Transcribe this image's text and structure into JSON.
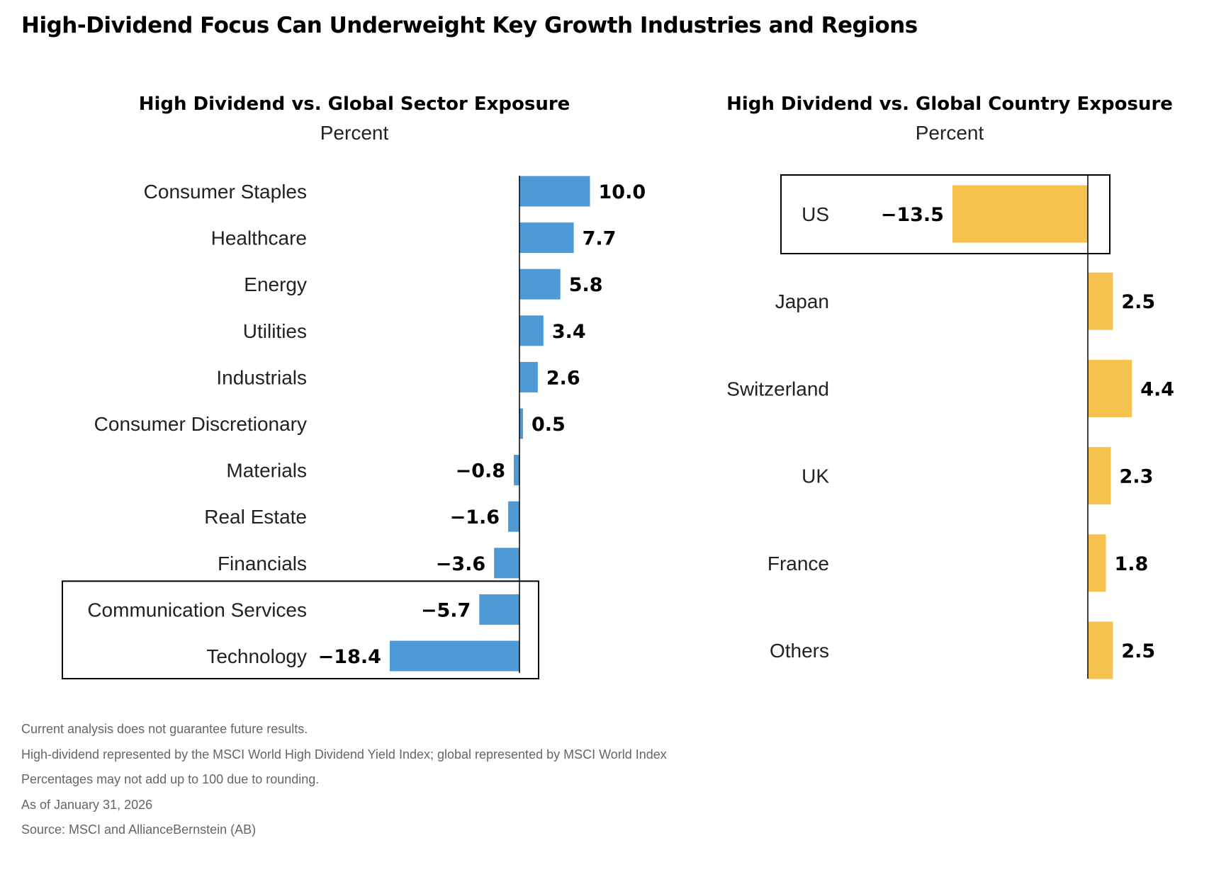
{
  "page_title": "High-Dividend Focus Can Underweight Key Growth Industries and Regions",
  "colors": {
    "sector_bar": "#4d9ad6",
    "country_bar": "#f4c24d"
  },
  "chart_data": [
    {
      "type": "bar",
      "orientation": "horizontal",
      "title": "High Dividend vs. Global Sector Exposure",
      "subtitle": "Percent",
      "categories": [
        "Consumer Staples",
        "Healthcare",
        "Energy",
        "Utilities",
        "Industrials",
        "Consumer Discretionary",
        "Materials",
        "Real Estate",
        "Financials",
        "Communication Services",
        "Technology"
      ],
      "values": [
        10.0,
        7.7,
        5.8,
        3.4,
        2.6,
        0.5,
        -0.8,
        -1.6,
        -3.6,
        -5.7,
        -18.4
      ],
      "value_labels": [
        "10.0",
        "7.7",
        "5.8",
        "3.4",
        "2.6",
        "0.5",
        "−0.8",
        "−1.6",
        "−3.6",
        "−5.7",
        "−18.4"
      ],
      "highlighted": [
        "Communication Services",
        "Technology"
      ],
      "xlim": [
        -18.4,
        10.0
      ]
    },
    {
      "type": "bar",
      "orientation": "horizontal",
      "title": "High Dividend vs. Global Country Exposure",
      "subtitle": "Percent",
      "categories": [
        "US",
        "Japan",
        "Switzerland",
        "UK",
        "France",
        "Others"
      ],
      "values": [
        -13.5,
        2.5,
        4.4,
        2.3,
        1.8,
        2.5
      ],
      "value_labels": [
        "−13.5",
        "2.5",
        "4.4",
        "2.3",
        "1.8",
        "2.5"
      ],
      "highlighted": [
        "US"
      ],
      "xlim": [
        -13.5,
        4.4
      ]
    }
  ],
  "notes": [
    "Current analysis does not guarantee future results.",
    "High-dividend represented by the MSCI World High Dividend Yield Index; global represented by MSCI World Index",
    "Percentages may not add up to 100 due to rounding.",
    "As of January 31, 2026",
    "Source: MSCI and AllianceBernstein (AB)"
  ]
}
